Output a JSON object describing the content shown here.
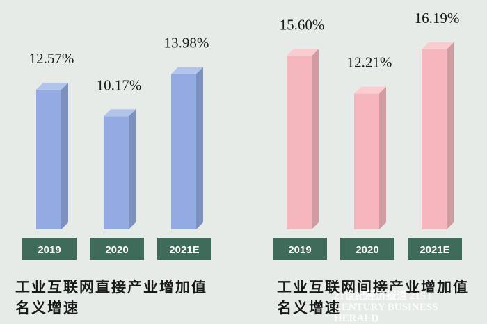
{
  "chart_data": [
    {
      "type": "bar",
      "title": "工业互联网直接产业增加值名义增速",
      "categories": [
        "2019",
        "2020",
        "2021E"
      ],
      "values": [
        12.57,
        10.17,
        13.98
      ],
      "value_labels": [
        "12.57%",
        "10.17%",
        "13.98%"
      ],
      "color": "#93aae2"
    },
    {
      "type": "bar",
      "title": "工业互联网间接产业增加值名义增速",
      "categories": [
        "2019",
        "2020",
        "2021E"
      ],
      "values": [
        15.6,
        12.21,
        16.19
      ],
      "value_labels": [
        "15.60%",
        "12.21%",
        "16.19%"
      ],
      "color": "#f6b6be"
    }
  ],
  "watermark": "21世纪经济报道 21ST CENTURY BUSINESS HERALD"
}
